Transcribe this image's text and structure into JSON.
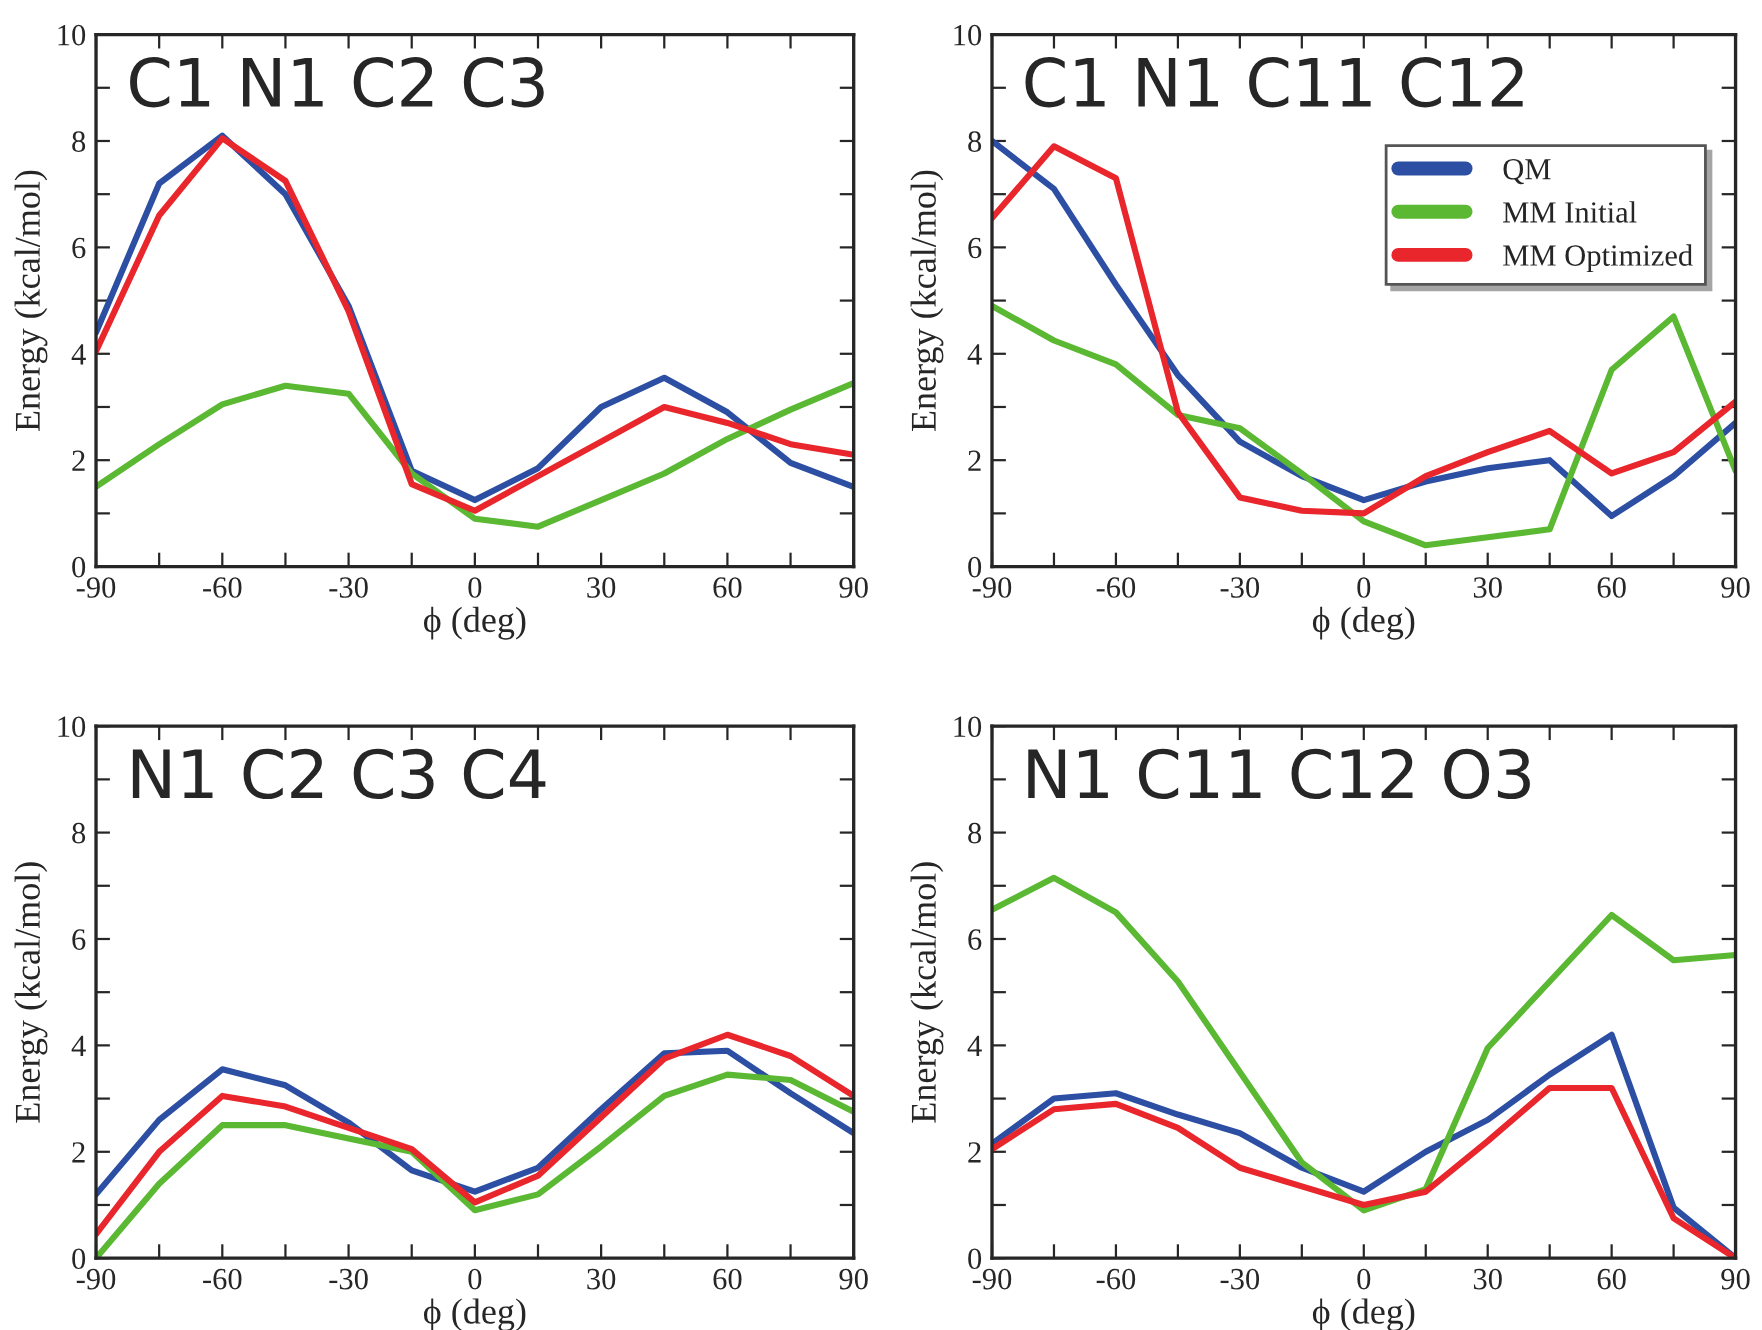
{
  "chart_data": [
    {
      "type": "line",
      "title": "C1 N1 C2 C3",
      "xlabel": "ϕ (deg)",
      "ylabel": "Energy (kcal/mol)",
      "x": [
        -90,
        -75,
        -60,
        -45,
        -30,
        -15,
        0,
        15,
        30,
        45,
        60,
        75,
        90
      ],
      "series": [
        {
          "color": "#2c4ea3",
          "values": [
            4.4,
            7.2,
            8.1,
            7.0,
            4.9,
            1.8,
            1.25,
            1.85,
            3.0,
            3.55,
            2.9,
            1.95,
            1.5
          ]
        },
        {
          "color": "#5ab832",
          "values": [
            1.5,
            2.3,
            3.05,
            3.4,
            3.25,
            1.75,
            0.9,
            0.75,
            1.25,
            1.75,
            2.4,
            2.95,
            3.45
          ]
        },
        {
          "color": "#e8262b",
          "values": [
            4.05,
            6.6,
            8.05,
            7.25,
            4.8,
            1.55,
            1.05,
            1.7,
            2.35,
            3.0,
            2.7,
            2.3,
            2.1
          ]
        }
      ],
      "xlim": [
        -90,
        90
      ],
      "ylim": [
        0,
        10
      ],
      "xticks": [
        -90,
        {
          "value": -75,
          "label": null
        },
        -60,
        {
          "value": -45,
          "label": null
        },
        -30,
        {
          "value": -15,
          "label": null
        },
        0,
        {
          "value": 15,
          "label": null
        },
        30,
        {
          "value": 45,
          "label": null
        },
        60,
        {
          "value": 75,
          "label": null
        },
        90
      ],
      "yticks": [
        0,
        {
          "value": 1,
          "label": null
        },
        2,
        {
          "value": 3,
          "label": null
        },
        4,
        {
          "value": 5,
          "label": null
        },
        6,
        {
          "value": 7,
          "label": null
        },
        8,
        {
          "value": 9,
          "label": null
        },
        10
      ],
      "grid": false,
      "legend": false
    },
    {
      "type": "line",
      "title": "C1 N1 C11 C12",
      "xlabel": "ϕ (deg)",
      "ylabel": "Energy (kcal/mol)",
      "x": [
        -90,
        -75,
        -60,
        -45,
        -30,
        -15,
        0,
        15,
        30,
        45,
        60,
        75,
        90
      ],
      "series": [
        {
          "name": "QM",
          "color": "#2c4ea3",
          "values": [
            8.0,
            7.1,
            5.3,
            3.6,
            2.35,
            1.7,
            1.25,
            1.6,
            1.85,
            2.0,
            0.95,
            1.7,
            2.7
          ]
        },
        {
          "name": "MM Initial",
          "color": "#5ab832",
          "values": [
            4.9,
            4.25,
            3.8,
            2.85,
            2.6,
            1.75,
            0.85,
            0.4,
            0.55,
            0.7,
            3.7,
            4.7,
            1.8
          ]
        },
        {
          "name": "MM Optimized",
          "color": "#e8262b",
          "values": [
            6.55,
            7.9,
            7.3,
            2.9,
            1.3,
            1.05,
            1.0,
            1.7,
            2.15,
            2.55,
            1.75,
            2.15,
            3.1
          ]
        }
      ],
      "xlim": [
        -90,
        90
      ],
      "ylim": [
        0,
        10
      ],
      "xticks": [
        -90,
        {
          "value": -75,
          "label": null
        },
        -60,
        {
          "value": -45,
          "label": null
        },
        -30,
        {
          "value": -15,
          "label": null
        },
        0,
        {
          "value": 15,
          "label": null
        },
        30,
        {
          "value": 45,
          "label": null
        },
        60,
        {
          "value": 75,
          "label": null
        },
        90
      ],
      "yticks": [
        0,
        {
          "value": 1,
          "label": null
        },
        2,
        {
          "value": 3,
          "label": null
        },
        4,
        {
          "value": 5,
          "label": null
        },
        6,
        {
          "value": 7,
          "label": null
        },
        8,
        {
          "value": 9,
          "label": null
        },
        10
      ],
      "grid": false,
      "legend": "top right"
    },
    {
      "type": "line",
      "title": "N1 C2 C3 C4",
      "xlabel": "ϕ (deg)",
      "ylabel": "Energy (kcal/mol)",
      "x": [
        -90,
        -75,
        -60,
        -45,
        -30,
        -15,
        0,
        15,
        30,
        45,
        60,
        75,
        90
      ],
      "series": [
        {
          "color": "#2c4ea3",
          "values": [
            1.2,
            2.6,
            3.55,
            3.25,
            2.55,
            1.65,
            1.25,
            1.7,
            2.8,
            3.85,
            3.9,
            3.1,
            2.35
          ]
        },
        {
          "color": "#5ab832",
          "values": [
            0.0,
            1.4,
            2.5,
            2.5,
            2.25,
            2.0,
            0.9,
            1.2,
            2.1,
            3.05,
            3.45,
            3.35,
            2.75
          ]
        },
        {
          "color": "#e8262b",
          "values": [
            0.45,
            2.0,
            3.05,
            2.85,
            2.45,
            2.05,
            1.05,
            1.55,
            2.65,
            3.75,
            4.2,
            3.8,
            3.05
          ]
        }
      ],
      "xlim": [
        -90,
        90
      ],
      "ylim": [
        0,
        10
      ],
      "xticks": [
        -90,
        {
          "value": -75,
          "label": null
        },
        -60,
        {
          "value": -45,
          "label": null
        },
        -30,
        {
          "value": -15,
          "label": null
        },
        0,
        {
          "value": 15,
          "label": null
        },
        30,
        {
          "value": 45,
          "label": null
        },
        60,
        {
          "value": 75,
          "label": null
        },
        90
      ],
      "yticks": [
        0,
        {
          "value": 1,
          "label": null
        },
        2,
        {
          "value": 3,
          "label": null
        },
        4,
        {
          "value": 5,
          "label": null
        },
        6,
        {
          "value": 7,
          "label": null
        },
        8,
        {
          "value": 9,
          "label": null
        },
        10
      ],
      "grid": false,
      "legend": false
    },
    {
      "type": "line",
      "title": "N1 C11 C12 O3",
      "xlabel": "ϕ (deg)",
      "ylabel": "Energy (kcal/mol)",
      "x": [
        -90,
        -75,
        -60,
        -45,
        -30,
        -15,
        0,
        15,
        30,
        45,
        60,
        75,
        90
      ],
      "series": [
        {
          "color": "#2c4ea3",
          "values": [
            2.15,
            3.0,
            3.1,
            2.7,
            2.35,
            1.7,
            1.25,
            2.0,
            2.6,
            3.45,
            4.2,
            0.95,
            0.0
          ]
        },
        {
          "color": "#5ab832",
          "values": [
            6.55,
            7.15,
            6.5,
            5.2,
            3.5,
            1.8,
            0.9,
            1.3,
            3.95,
            5.2,
            6.45,
            5.6,
            5.7
          ]
        },
        {
          "color": "#e8262b",
          "values": [
            2.05,
            2.8,
            2.9,
            2.45,
            1.7,
            1.35,
            1.0,
            1.25,
            2.2,
            3.2,
            3.2,
            0.75,
            0.0
          ]
        }
      ],
      "xlim": [
        -90,
        90
      ],
      "ylim": [
        0,
        10
      ],
      "xticks": [
        -90,
        {
          "value": -75,
          "label": null
        },
        -60,
        {
          "value": -45,
          "label": null
        },
        -30,
        {
          "value": -15,
          "label": null
        },
        0,
        {
          "value": 15,
          "label": null
        },
        30,
        {
          "value": 45,
          "label": null
        },
        60,
        {
          "value": 75,
          "label": null
        },
        90
      ],
      "yticks": [
        0,
        {
          "value": 1,
          "label": null
        },
        2,
        {
          "value": 3,
          "label": null
        },
        4,
        {
          "value": 5,
          "label": null
        },
        6,
        {
          "value": 7,
          "label": null
        },
        8,
        {
          "value": 9,
          "label": null
        },
        10
      ],
      "grid": false,
      "legend": false
    }
  ]
}
